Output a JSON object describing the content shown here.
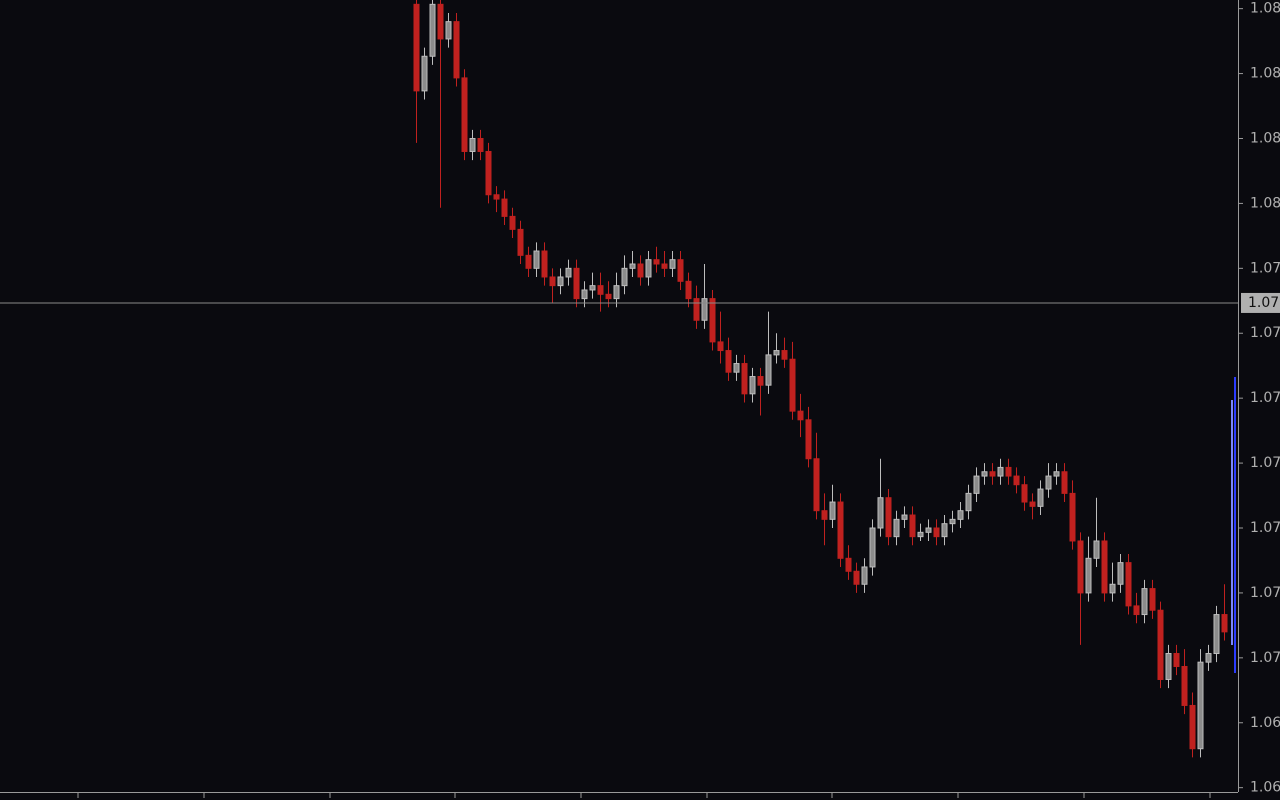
{
  "chart_data": {
    "type": "candlestick",
    "open": [
      1.0806,
      1.0786,
      1.0794,
      1.0806,
      1.0798,
      1.0802,
      1.0789,
      1.0772,
      1.0775,
      1.0772,
      1.0762,
      1.0761,
      1.0757,
      1.0754,
      1.0748,
      1.0745,
      1.0749,
      1.0743,
      1.0741,
      1.0743,
      1.0745,
      1.0738,
      1.074,
      1.0741,
      1.0739,
      1.0738,
      1.0741,
      1.0745,
      1.0746,
      1.0743,
      1.0747,
      1.0746,
      1.0745,
      1.0747,
      1.0742,
      1.0738,
      1.0733,
      1.0738,
      1.0728,
      1.0726,
      1.0721,
      1.0723,
      1.0716,
      1.072,
      1.0718,
      1.0725,
      1.0726,
      1.0724,
      1.0712,
      1.071,
      1.0701,
      1.0689,
      1.0687,
      1.0691,
      1.0678,
      1.0675,
      1.0672,
      1.0676,
      1.0685,
      1.0692,
      1.0683,
      1.0687,
      1.0688,
      1.0683,
      1.0684,
      1.0685,
      1.0683,
      1.0686,
      1.0687,
      1.0689,
      1.0693,
      1.0697,
      1.0698,
      1.0697,
      1.0699,
      1.0697,
      1.0695,
      1.0691,
      1.069,
      1.0694,
      1.0697,
      1.0698,
      1.0693,
      1.0682,
      1.067,
      1.0678,
      1.0682,
      1.067,
      1.0672,
      1.0677,
      1.0667,
      1.0665,
      1.0671,
      1.0666,
      1.065,
      1.0656,
      1.0653,
      1.0644,
      1.0634,
      1.0654,
      1.0656,
      1.0665
    ],
    "high": [
      1.0807,
      1.0796,
      1.0807,
      1.0807,
      1.0804,
      1.0804,
      1.0791,
      1.0777,
      1.0777,
      1.0774,
      1.0764,
      1.0763,
      1.0759,
      1.0756,
      1.075,
      1.0751,
      1.0751,
      1.0745,
      1.0745,
      1.0747,
      1.0747,
      1.0742,
      1.0744,
      1.0744,
      1.0742,
      1.0744,
      1.0748,
      1.0749,
      1.0748,
      1.0749,
      1.075,
      1.0749,
      1.0749,
      1.0749,
      1.0744,
      1.0741,
      1.0746,
      1.074,
      1.0735,
      1.0729,
      1.0725,
      1.0725,
      1.0722,
      1.0722,
      1.0735,
      1.073,
      1.0729,
      1.0728,
      1.0716,
      1.0713,
      1.0707,
      1.0693,
      1.0695,
      1.0693,
      1.0681,
      1.0677,
      1.0678,
      1.0687,
      1.0701,
      1.0694,
      1.0689,
      1.069,
      1.069,
      1.0686,
      1.0687,
      1.0687,
      1.0688,
      1.0689,
      1.0691,
      1.0695,
      1.0699,
      1.07,
      1.07,
      1.0701,
      1.0701,
      1.0699,
      1.0697,
      1.0693,
      1.0696,
      1.07,
      1.07,
      1.07,
      1.0696,
      1.0684,
      1.0683,
      1.0692,
      1.0684,
      1.0677,
      1.0679,
      1.0679,
      1.067,
      1.0673,
      1.0673,
      1.0668,
      1.0658,
      1.0658,
      1.0657,
      1.0647,
      1.0657,
      1.0658,
      1.0667,
      1.0672
    ],
    "low": [
      1.0774,
      1.0784,
      1.0792,
      1.0759,
      1.0796,
      1.0787,
      1.077,
      1.077,
      1.077,
      1.076,
      1.0758,
      1.0755,
      1.0752,
      1.0746,
      1.0743,
      1.0743,
      1.0741,
      1.0737,
      1.0739,
      1.0741,
      1.0736,
      1.0736,
      1.0738,
      1.0735,
      1.0736,
      1.0736,
      1.0739,
      1.0743,
      1.0741,
      1.0741,
      1.0744,
      1.0743,
      1.0743,
      1.074,
      1.0736,
      1.0731,
      1.0731,
      1.0726,
      1.0723,
      1.0719,
      1.0719,
      1.0714,
      1.0714,
      1.0711,
      1.0716,
      1.0723,
      1.0722,
      1.071,
      1.0706,
      1.0699,
      1.0687,
      1.0681,
      1.0685,
      1.0676,
      1.0673,
      1.067,
      1.067,
      1.0674,
      1.0683,
      1.0681,
      1.0681,
      1.0685,
      1.0681,
      1.0682,
      1.0682,
      1.0681,
      1.0681,
      1.0684,
      1.0685,
      1.0687,
      1.0691,
      1.0695,
      1.0695,
      1.0695,
      1.0695,
      1.0693,
      1.0689,
      1.0687,
      1.0688,
      1.0692,
      1.0695,
      1.0691,
      1.068,
      1.0658,
      1.0668,
      1.0676,
      1.0668,
      1.0668,
      1.067,
      1.0665,
      1.0663,
      1.0663,
      1.0664,
      1.0648,
      1.0648,
      1.0651,
      1.0642,
      1.0632,
      1.0632,
      1.0652,
      1.0654,
      1.0659
    ],
    "close": [
      1.0786,
      1.0794,
      1.0806,
      1.0798,
      1.0802,
      1.0789,
      1.0772,
      1.0775,
      1.0772,
      1.0762,
      1.0761,
      1.0757,
      1.0754,
      1.0748,
      1.0745,
      1.0749,
      1.0743,
      1.0741,
      1.0743,
      1.0745,
      1.0738,
      1.074,
      1.0741,
      1.0739,
      1.0738,
      1.0741,
      1.0745,
      1.0746,
      1.0743,
      1.0747,
      1.0746,
      1.0745,
      1.0747,
      1.0742,
      1.0738,
      1.0733,
      1.0738,
      1.0728,
      1.0726,
      1.0721,
      1.0723,
      1.0716,
      1.072,
      1.0718,
      1.0725,
      1.0726,
      1.0724,
      1.0712,
      1.071,
      1.0701,
      1.0689,
      1.0687,
      1.0691,
      1.0678,
      1.0675,
      1.0672,
      1.0676,
      1.0685,
      1.0692,
      1.0683,
      1.0687,
      1.0688,
      1.0683,
      1.0684,
      1.0685,
      1.0683,
      1.0686,
      1.0687,
      1.0689,
      1.0693,
      1.0697,
      1.0698,
      1.0697,
      1.0699,
      1.0697,
      1.0695,
      1.0691,
      1.069,
      1.0694,
      1.0697,
      1.0698,
      1.0693,
      1.0682,
      1.067,
      1.0678,
      1.0682,
      1.067,
      1.0672,
      1.0677,
      1.0667,
      1.0665,
      1.0671,
      1.0666,
      1.065,
      1.0656,
      1.0653,
      1.0644,
      1.0634,
      1.0654,
      1.0656,
      1.0665,
      1.0661
    ],
    "up_color": "#bdbdbd",
    "down_color": "#c0211f",
    "ylim": [
      1.0624,
      1.0807
    ],
    "yticks": [
      {
        "value": 1.0805,
        "label": "1.08"
      },
      {
        "value": 1.079,
        "label": "1.08"
      },
      {
        "value": 1.0775,
        "label": "1.08"
      },
      {
        "value": 1.076,
        "label": "1.08"
      },
      {
        "value": 1.0745,
        "label": "1.07"
      },
      {
        "value": 1.073,
        "label": "1.07"
      },
      {
        "value": 1.0715,
        "label": "1.07"
      },
      {
        "value": 1.07,
        "label": "1.07"
      },
      {
        "value": 1.0685,
        "label": "1.07"
      },
      {
        "value": 1.067,
        "label": "1.07"
      },
      {
        "value": 1.0655,
        "label": "1.07"
      },
      {
        "value": 1.064,
        "label": "1.06"
      },
      {
        "value": 1.0625,
        "label": "1.06"
      }
    ],
    "current_price": {
      "value": 1.0737,
      "label": "1.07"
    }
  }
}
